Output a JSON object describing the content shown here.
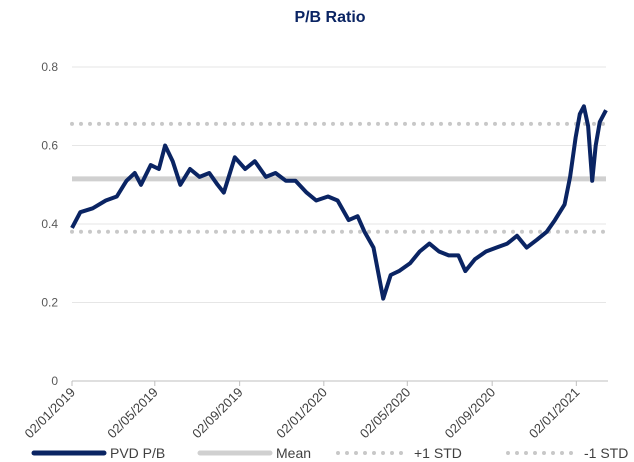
{
  "chart_data": {
    "type": "line",
    "title": "P/B Ratio",
    "xlim": [
      "2019-01-02",
      "2021-02-14"
    ],
    "ylim": [
      0,
      0.8
    ],
    "yticks": [
      0,
      0.2,
      0.4,
      0.6,
      0.8
    ],
    "xticks": [
      {
        "value": "2019-01-02",
        "label": "02/01/2019"
      },
      {
        "value": "2019-05-02",
        "label": "02/05/2019"
      },
      {
        "value": "2019-09-02",
        "label": "02/09/2019"
      },
      {
        "value": "2020-01-02",
        "label": "02/01/2020"
      },
      {
        "value": "2020-05-02",
        "label": "02/05/2020"
      },
      {
        "value": "2020-09-02",
        "label": "02/09/2020"
      },
      {
        "value": "2021-01-02",
        "label": "02/01/2021"
      }
    ],
    "grid": true,
    "legend": "bottom",
    "series": [
      {
        "name": "PVD P/B",
        "color": "#0a2463",
        "style": "solid",
        "x": [
          "2019-01-02",
          "2019-01-14",
          "2019-02-01",
          "2019-02-20",
          "2019-03-08",
          "2019-03-22",
          "2019-04-03",
          "2019-04-12",
          "2019-04-26",
          "2019-05-08",
          "2019-05-17",
          "2019-05-28",
          "2019-06-08",
          "2019-06-22",
          "2019-07-06",
          "2019-07-20",
          "2019-08-01",
          "2019-08-10",
          "2019-08-26",
          "2019-09-10",
          "2019-09-24",
          "2019-10-10",
          "2019-10-24",
          "2019-11-08",
          "2019-11-22",
          "2019-12-08",
          "2019-12-22",
          "2020-01-08",
          "2020-01-22",
          "2020-02-07",
          "2020-02-20",
          "2020-03-01",
          "2020-03-14",
          "2020-03-28",
          "2020-04-08",
          "2020-04-20",
          "2020-05-06",
          "2020-05-20",
          "2020-06-03",
          "2020-06-17",
          "2020-07-01",
          "2020-07-15",
          "2020-07-25",
          "2020-08-08",
          "2020-08-24",
          "2020-09-08",
          "2020-09-24",
          "2020-10-08",
          "2020-10-22",
          "2020-11-06",
          "2020-11-20",
          "2020-12-02",
          "2020-12-16",
          "2020-12-24",
          "2021-01-01",
          "2021-01-07",
          "2021-01-13",
          "2021-01-19",
          "2021-01-25",
          "2021-01-30",
          "2021-02-05",
          "2021-02-14"
        ],
        "values": [
          0.39,
          0.43,
          0.44,
          0.46,
          0.47,
          0.51,
          0.53,
          0.5,
          0.55,
          0.54,
          0.6,
          0.56,
          0.5,
          0.54,
          0.52,
          0.53,
          0.5,
          0.48,
          0.57,
          0.54,
          0.56,
          0.52,
          0.53,
          0.51,
          0.51,
          0.48,
          0.46,
          0.47,
          0.46,
          0.41,
          0.42,
          0.38,
          0.34,
          0.21,
          0.27,
          0.28,
          0.3,
          0.33,
          0.35,
          0.33,
          0.32,
          0.32,
          0.28,
          0.31,
          0.33,
          0.34,
          0.35,
          0.37,
          0.34,
          0.36,
          0.38,
          0.41,
          0.45,
          0.52,
          0.62,
          0.68,
          0.7,
          0.65,
          0.51,
          0.6,
          0.66,
          0.69
        ]
      },
      {
        "name": "Mean",
        "color": "#d0d0d0",
        "style": "solid",
        "x": [
          "2019-01-02",
          "2021-02-14"
        ],
        "values": [
          0.515,
          0.515
        ]
      },
      {
        "name": "+1 STD",
        "color": "#c8c8c8",
        "style": "dotted",
        "x": [
          "2019-01-02",
          "2021-02-14"
        ],
        "values": [
          0.655,
          0.655
        ]
      },
      {
        "name": "-1 STD",
        "color": "#c8c8c8",
        "style": "dotted",
        "x": [
          "2019-01-02",
          "2021-02-14"
        ],
        "values": [
          0.38,
          0.38
        ]
      }
    ]
  }
}
